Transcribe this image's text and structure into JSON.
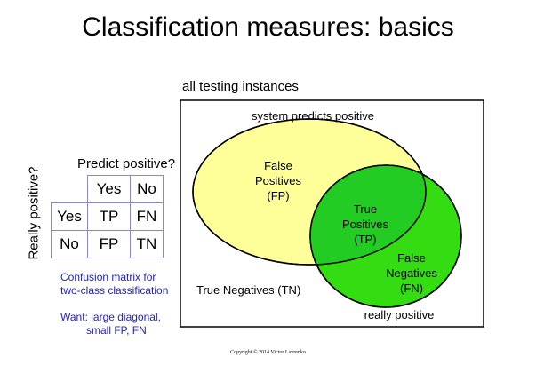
{
  "title": "Classification measures: basics",
  "diagram": {
    "box_label": "all testing instances",
    "predicted_label": "system predicts positive",
    "actual_label": "really positive",
    "fp_lines": [
      "False",
      "Positives",
      "(FP)"
    ],
    "tp_lines": [
      "True",
      "Positives",
      "(TP)"
    ],
    "fn_lines": [
      "False",
      "Negatives",
      "(FN)"
    ],
    "tn_label": "True Negatives (TN)",
    "colors": {
      "predicted_fill": "#ffff99",
      "actual_fill": "#33dd11",
      "overlap_fill": "#22cc22",
      "outline": "#000000"
    }
  },
  "matrix": {
    "column_title": "Predict positive?",
    "row_title": "Really positive?",
    "header": [
      "Yes",
      "No"
    ],
    "rows": [
      {
        "label": "Yes",
        "cells": [
          "TP",
          "FN"
        ]
      },
      {
        "label": "No",
        "cells": [
          "FP",
          "TN"
        ]
      }
    ],
    "grid_color": "#8a8ad0"
  },
  "notes": {
    "caption_lines": [
      "Confusion matrix  for",
      "two-class classification"
    ],
    "want_lines": [
      "Want: large diagonal,",
      "small FP, FN"
    ],
    "color": "#2222cc"
  },
  "copyright": "Copyright © 2014 Victor Lavrenko"
}
